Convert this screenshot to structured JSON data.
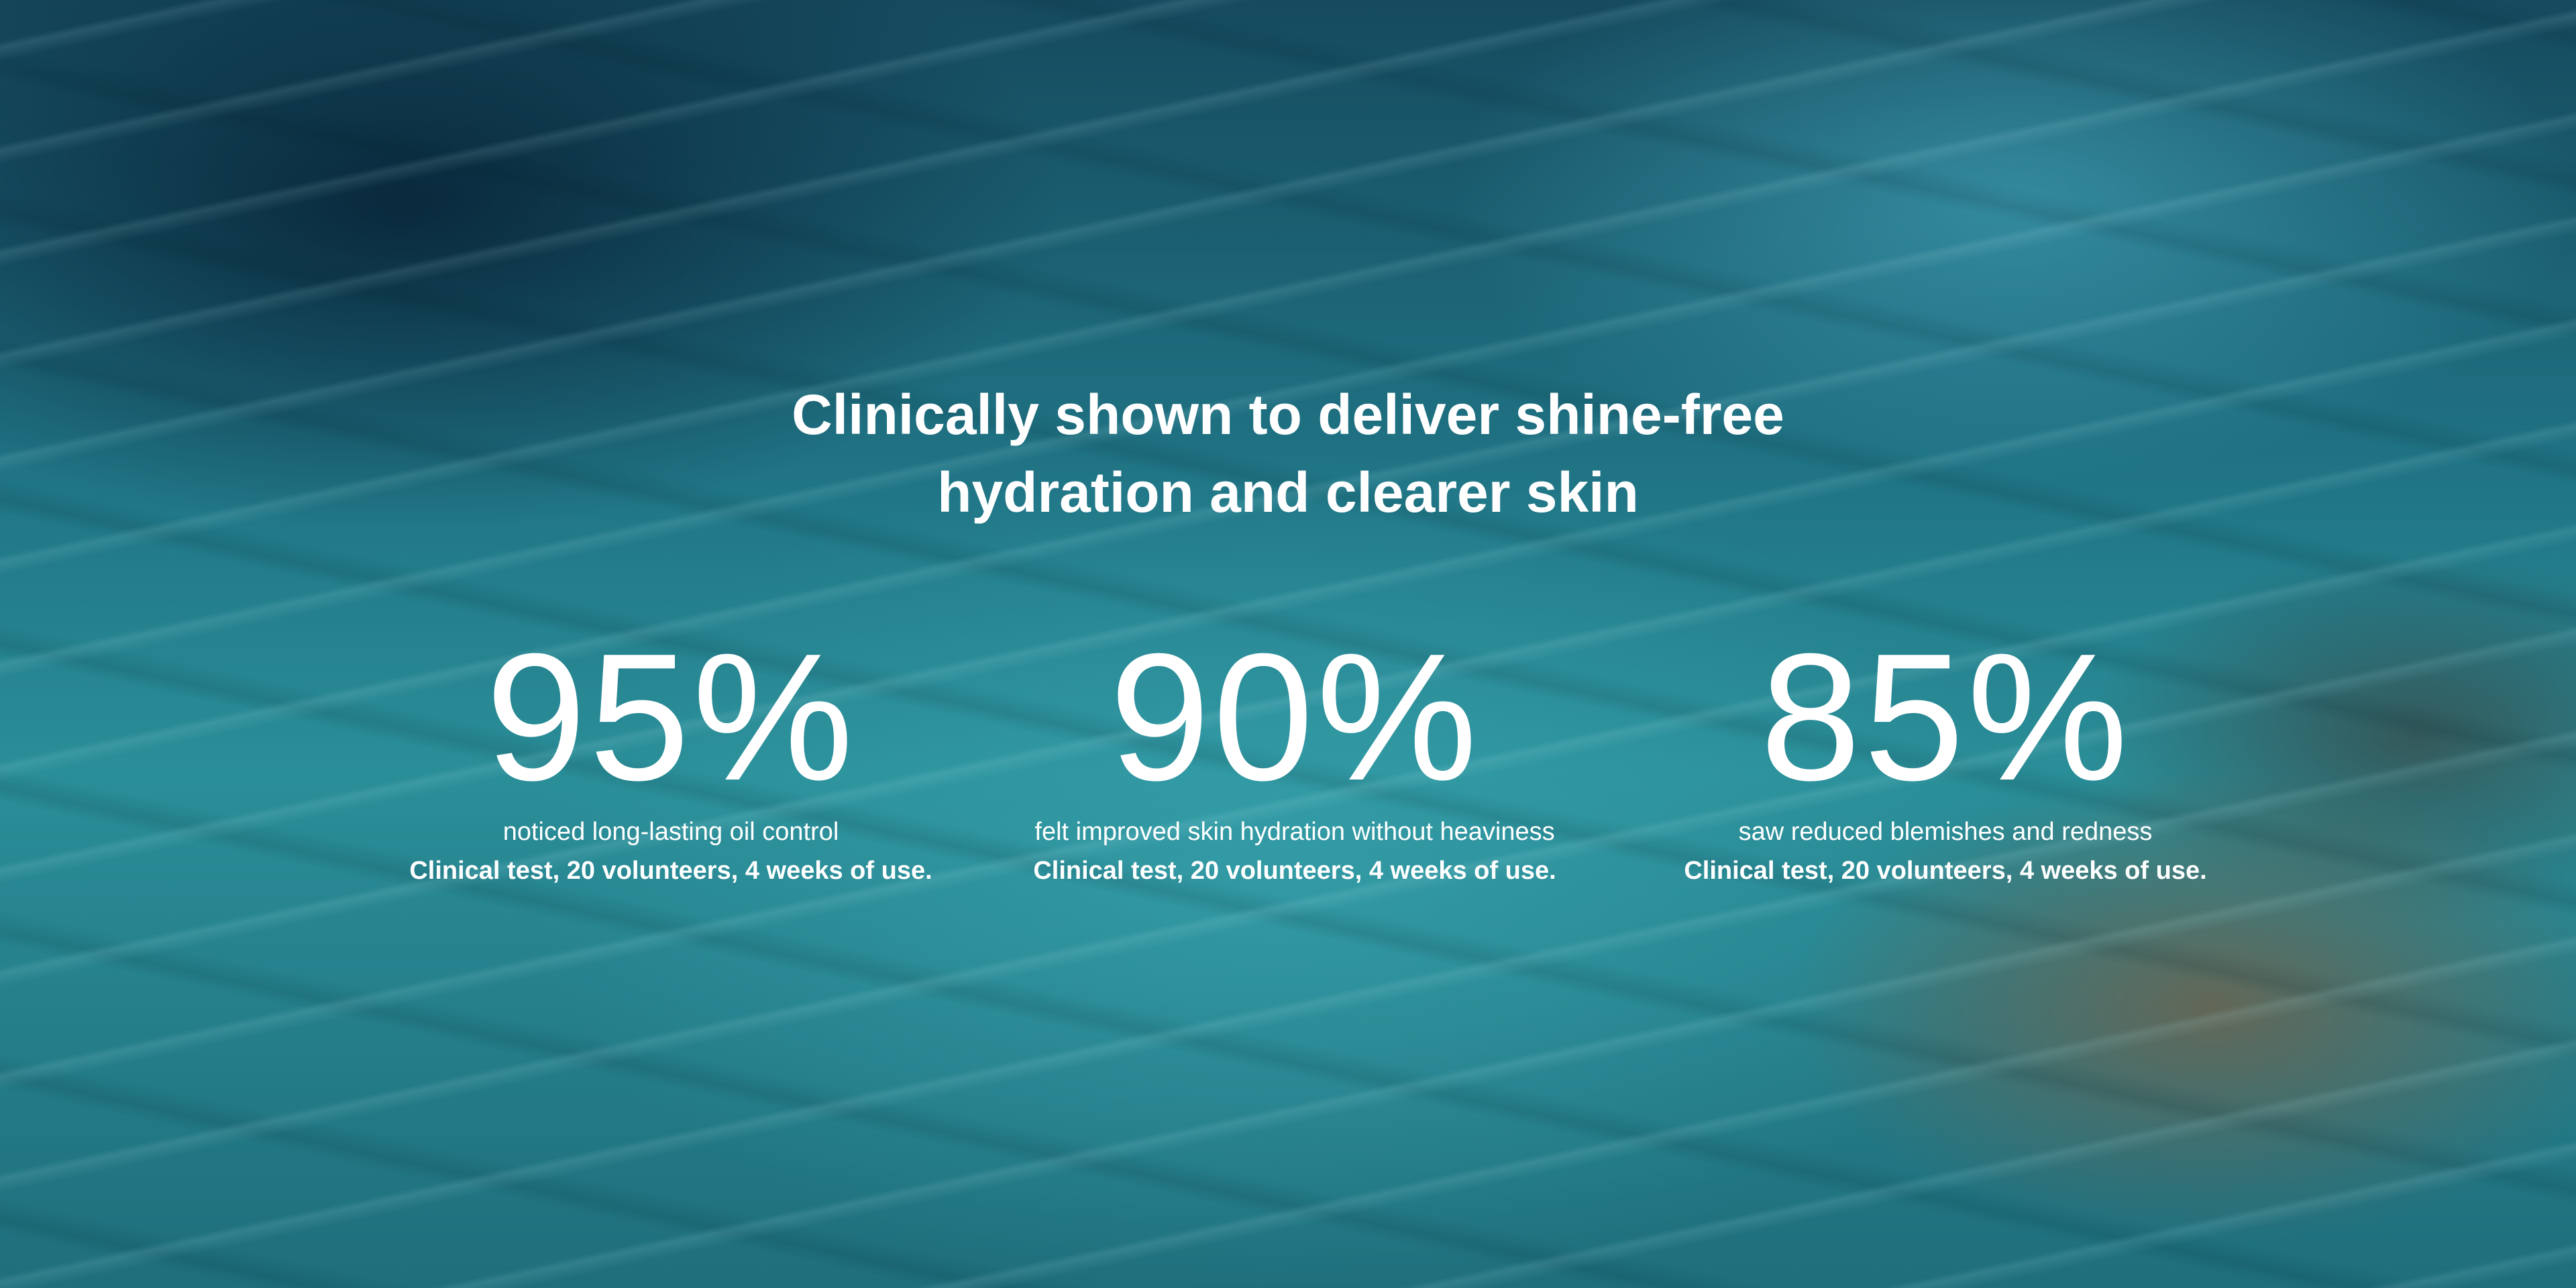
{
  "headline": {
    "line1": "Clinically shown to deliver shine-free",
    "line2": "hydration and clearer skin"
  },
  "stats": [
    {
      "value": "95%",
      "caption": "noticed long-lasting oil control",
      "note": "Clinical test, 20 volunteers, 4 weeks of use."
    },
    {
      "value": "90%",
      "caption": "felt improved skin hydration without heaviness",
      "note": "Clinical test, 20 volunteers, 4 weeks of use."
    },
    {
      "value": "85%",
      "caption": "saw reduced blemishes and redness",
      "note": "Clinical test, 20 volunteers, 4 weeks of use."
    }
  ],
  "colors": {
    "text": "#ffffff",
    "water": "#1f7283"
  }
}
